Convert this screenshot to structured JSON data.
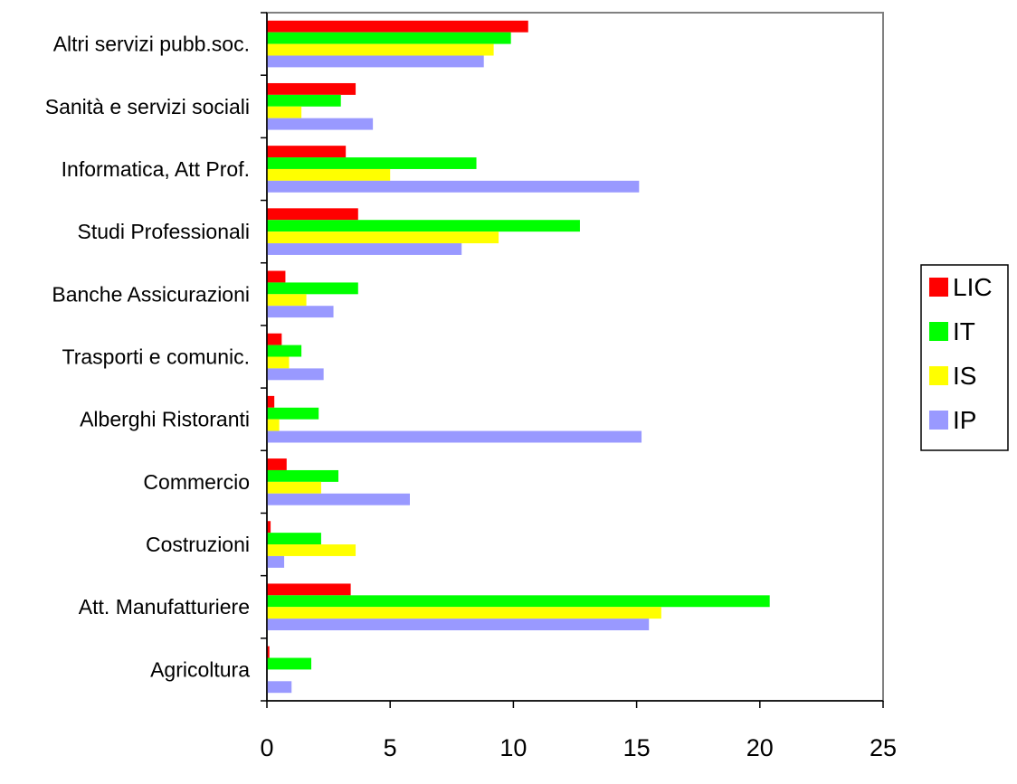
{
  "chart_data": {
    "type": "bar",
    "orientation": "horizontal",
    "categories": [
      "Agricoltura",
      "Att. Manufatturiere",
      "Costruzioni",
      "Commercio",
      "Alberghi Ristoranti",
      "Trasporti e comunic.",
      "Banche Assicurazioni",
      "Studi Professionali",
      "Informatica, Att Prof.",
      "Sanità e servizi sociali",
      "Altri servizi pubb.soc."
    ],
    "series": [
      {
        "name": "LIC",
        "color": "#ff0000",
        "values": [
          0.1,
          3.4,
          0.15,
          0.8,
          0.3,
          0.6,
          0.75,
          3.7,
          3.2,
          3.6,
          10.6
        ]
      },
      {
        "name": "IT",
        "color": "#00ff00",
        "values": [
          1.8,
          20.4,
          2.2,
          2.9,
          2.1,
          1.4,
          3.7,
          12.7,
          8.5,
          3.0,
          9.9
        ]
      },
      {
        "name": "IS",
        "color": "#ffff00",
        "values": [
          0,
          16.0,
          3.6,
          2.2,
          0.5,
          0.9,
          1.6,
          9.4,
          5.0,
          1.4,
          9.2
        ]
      },
      {
        "name": "IP",
        "color": "#9999ff",
        "values": [
          1.0,
          15.5,
          0.7,
          5.8,
          15.2,
          2.3,
          2.7,
          7.9,
          15.1,
          4.3,
          8.8
        ]
      }
    ],
    "xticks": [
      "0",
      "5",
      "10",
      "15",
      "20",
      "25"
    ],
    "xlim": [
      0,
      25
    ],
    "title": "",
    "xlabel": "",
    "ylabel": "",
    "grid": false,
    "legend_position": "right"
  }
}
